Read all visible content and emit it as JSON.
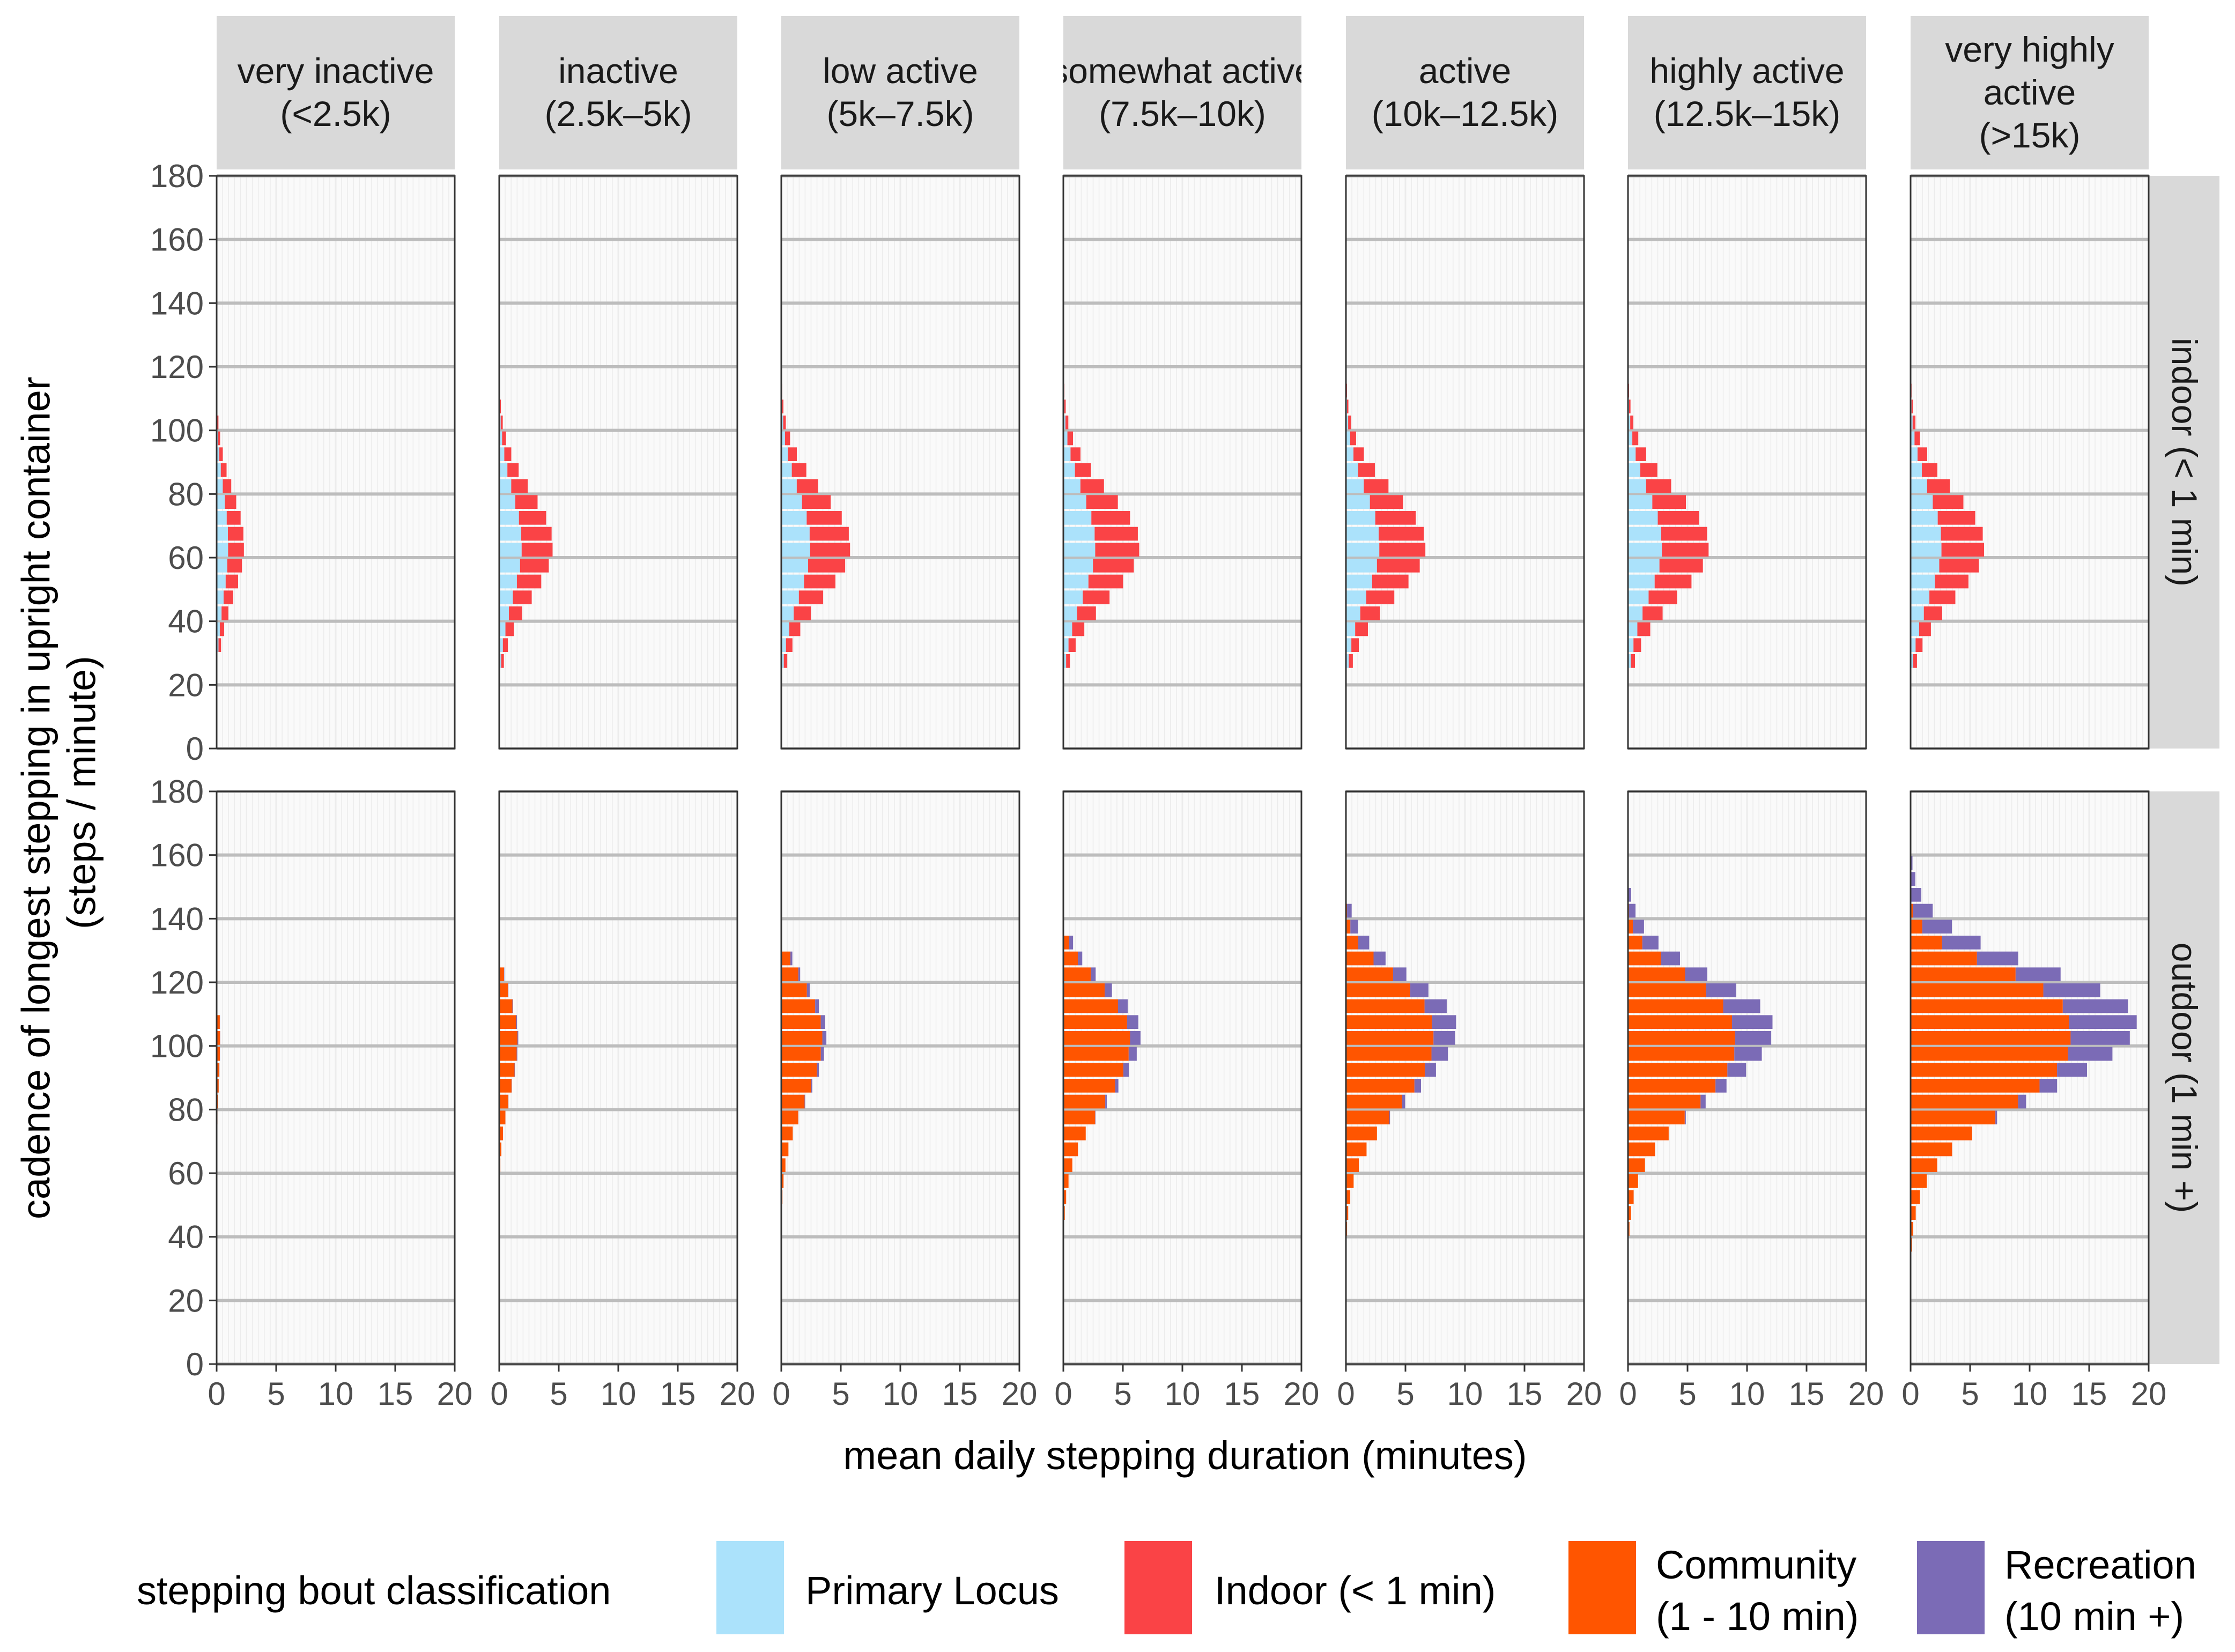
{
  "chart_data": {
    "type": "bar",
    "orientation": "horizontal-stacked",
    "xlabel": "mean daily stepping duration (minutes)",
    "ylabel_line1": "cadence of longest stepping in upright container",
    "ylabel_line2": "(steps / minute)",
    "xlim": [
      0,
      20
    ],
    "ylim": [
      0,
      180
    ],
    "x_ticks": [
      "0",
      "5",
      "10",
      "15",
      "20"
    ],
    "y_ticks": [
      "0",
      "20",
      "40",
      "60",
      "80",
      "100",
      "120",
      "140",
      "160",
      "180"
    ],
    "cadence_bin_width": 5,
    "columns": [
      {
        "line1": "very inactive",
        "line2": "(<2.5k)",
        "line3": ""
      },
      {
        "line1": "inactive",
        "line2": "(2.5k–5k)",
        "line3": ""
      },
      {
        "line1": "low active",
        "line2": "(5k–7.5k)",
        "line3": ""
      },
      {
        "line1": "somewhat active",
        "line2": "(7.5k–10k)",
        "line3": ""
      },
      {
        "line1": "active",
        "line2": "(10k–12.5k)",
        "line3": ""
      },
      {
        "line1": "highly active",
        "line2": "(12.5k–15k)",
        "line3": ""
      },
      {
        "line1": "very highly",
        "line2": "active",
        "line3": "(>15k)"
      }
    ],
    "rows": [
      {
        "label": "indoor (< 1 min)"
      },
      {
        "label": "outdoor (1 min +)"
      }
    ],
    "series": [
      {
        "name": "Primary Locus",
        "color": "#abe2fb",
        "row": "indoor"
      },
      {
        "name": "Indoor (< 1 min)",
        "color": "#fa4346",
        "row": "indoor"
      },
      {
        "name": "Community (1 - 10 min)",
        "color": "#ff5500",
        "row": "outdoor"
      },
      {
        "name": "Recreation (10 min +)",
        "color": "#7b6bb6",
        "row": "outdoor"
      }
    ],
    "legend": {
      "title": "stepping bout classification",
      "position": "bottom",
      "items": [
        {
          "line1": "Primary Locus",
          "line2": ""
        },
        {
          "line1": "Indoor (< 1 min)",
          "line2": ""
        },
        {
          "line1": "Community",
          "line2": "(1 - 10 min)"
        },
        {
          "line1": "Recreation",
          "line2": "(10 min +)"
        }
      ]
    },
    "indoor": {
      "center_cadence": 64,
      "sigma": 16.5,
      "peak_totals": [
        2.3,
        4.5,
        5.8,
        6.4,
        6.7,
        6.8,
        6.2
      ],
      "primary_fraction": 0.42,
      "lower_cutoff": [
        30,
        25,
        25,
        25,
        25,
        25,
        25
      ],
      "upper_cutoff": [
        105,
        120,
        120,
        120,
        120,
        120,
        120
      ]
    },
    "outdoor": {
      "mode": [
        103,
        103,
        104,
        104,
        106,
        106,
        108
      ],
      "sigma_left": [
        15,
        17,
        19,
        20,
        21,
        21,
        22
      ],
      "sigma_right": [
        12,
        12,
        14,
        14,
        15,
        15,
        16
      ],
      "peak_totals": [
        0.3,
        1.6,
        3.8,
        6.5,
        9.3,
        12.2,
        19.0
      ],
      "recreation_fraction_peak": [
        0.05,
        0.05,
        0.1,
        0.15,
        0.22,
        0.28,
        0.3
      ],
      "lower_cutoff": [
        40,
        40,
        40,
        35,
        35,
        35,
        35
      ],
      "upper_cutoff": [
        110,
        125,
        130,
        135,
        145,
        150,
        160
      ]
    }
  }
}
